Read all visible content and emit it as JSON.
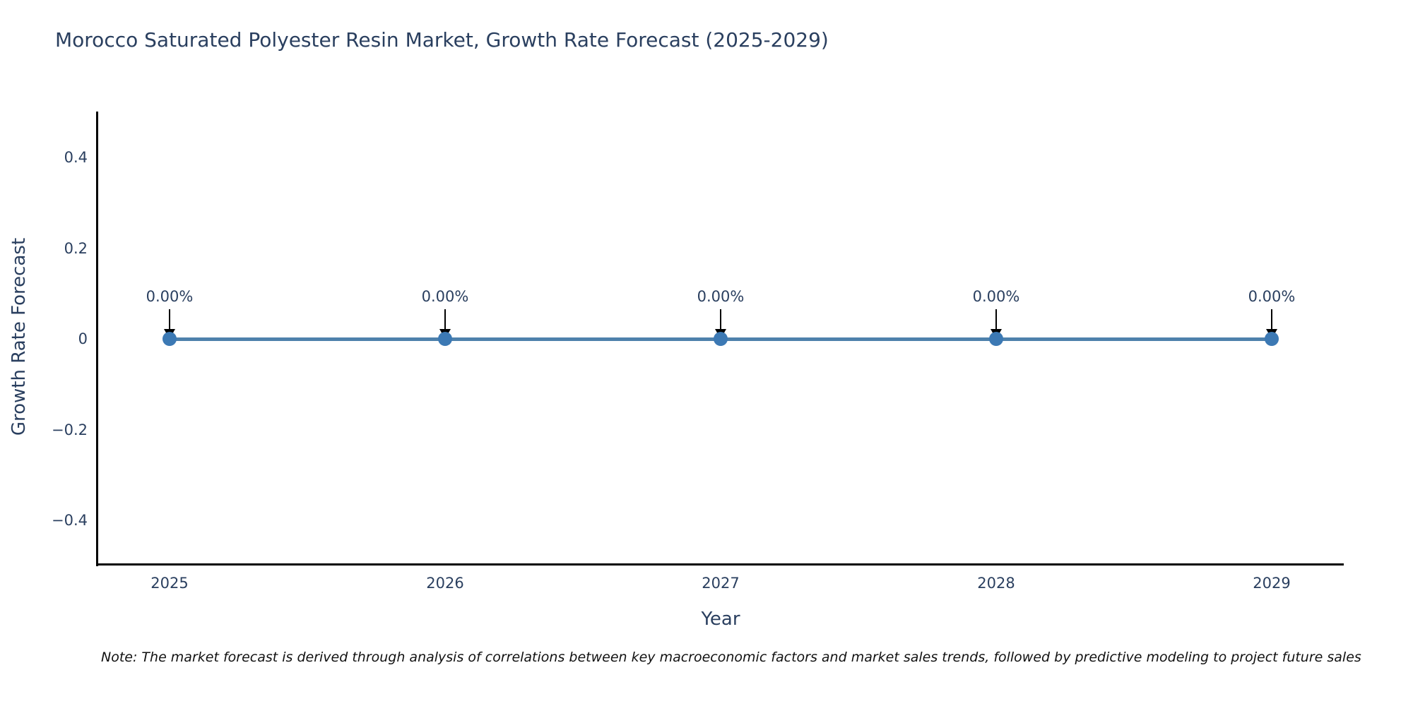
{
  "footnote": "Note: The market forecast is derived through analysis of correlations between key macroeconomic factors and market sales trends, followed by predictive modeling to project future sales",
  "chart_data": {
    "type": "line",
    "title": "Morocco Saturated Polyester Resin Market, Growth Rate Forecast (2025-2029)",
    "xlabel": "Year",
    "ylabel": "Growth Rate Forecast",
    "x": [
      2025,
      2026,
      2027,
      2028,
      2029
    ],
    "categories": [
      "2025",
      "2026",
      "2027",
      "2028",
      "2029"
    ],
    "values": [
      0,
      0,
      0,
      0,
      0
    ],
    "point_labels": [
      "0.00%",
      "0.00%",
      "0.00%",
      "0.00%",
      "0.00%"
    ],
    "ylim": [
      -0.5,
      0.5
    ],
    "yticks": [
      {
        "value": 0.4,
        "label": "0.4"
      },
      {
        "value": 0.2,
        "label": "0.2"
      },
      {
        "value": 0,
        "label": "0"
      },
      {
        "value": -0.2,
        "label": "−0.2"
      },
      {
        "value": -0.4,
        "label": "−0.4"
      }
    ],
    "grid": false,
    "legend": "none",
    "colors": {
      "line": "#4e81ac",
      "marker": "#3c79b4",
      "axis": "#000000",
      "text": "#2a3f5f",
      "annotation_arrow": "#000000"
    }
  }
}
